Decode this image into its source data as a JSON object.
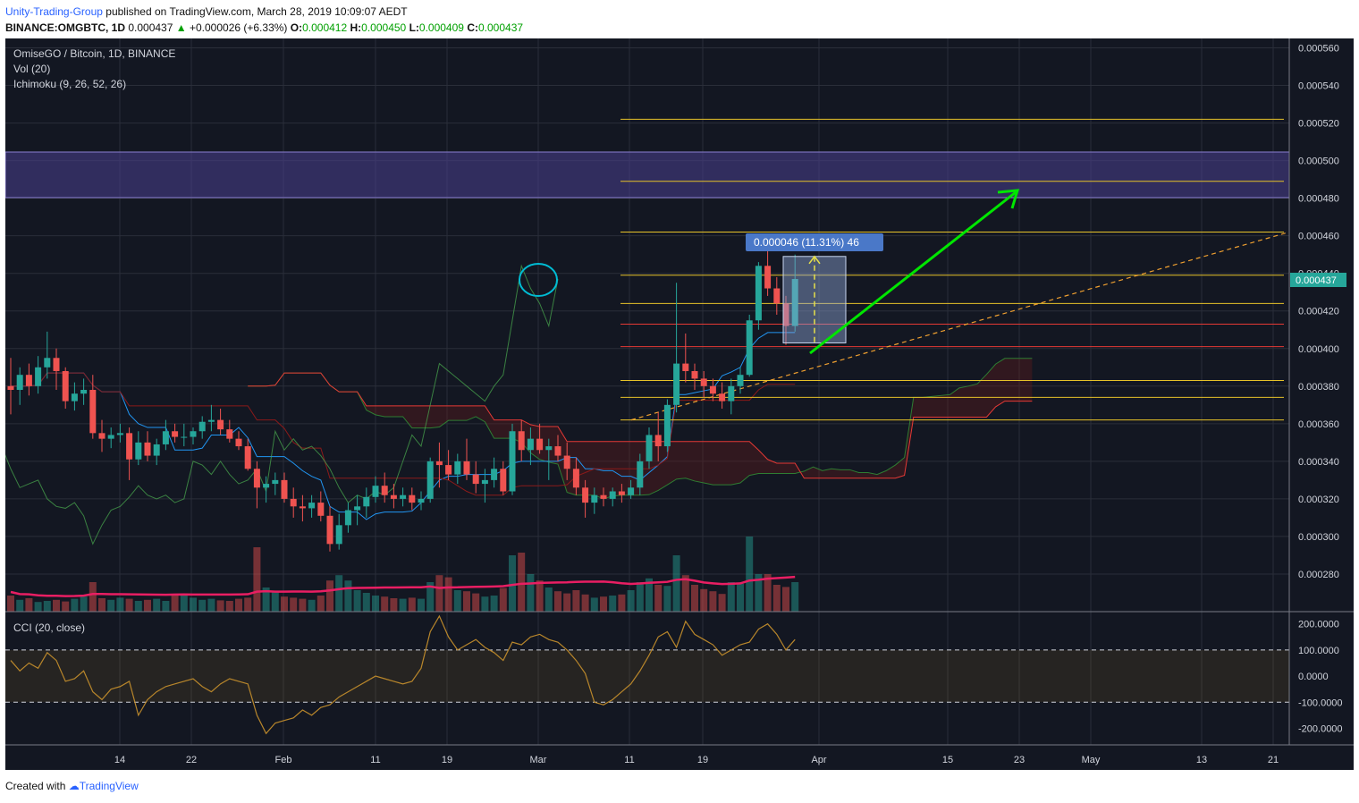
{
  "header": {
    "author": "Unity-Trading-Group",
    "published": "published on TradingView.com, March 28, 2019 10:09:07 AEDT",
    "symbol": "BINANCE:OMGBTC, 1D",
    "last": "0.000437",
    "change": "+0.000026 (+6.33%)",
    "o_label": "O:",
    "o": "0.000412",
    "h_label": "H:",
    "h": "0.000450",
    "l_label": "L:",
    "l": "0.000409",
    "c_label": "C:",
    "c": "0.000437"
  },
  "legend": {
    "line1": "OmiseGO / Bitcoin, 1D, BINANCE",
    "line2": "Vol (20)",
    "line3": "Ichimoku (9, 26, 52, 26)",
    "cci": "CCI (20, close)"
  },
  "footer": {
    "created": "Created with",
    "brand": "TradingView"
  },
  "colors": {
    "bg": "#131722",
    "up": "#26a69a",
    "down": "#ef5350",
    "zone": "#4b3f8f",
    "fib": "#e6c229",
    "red": "#e53935",
    "arrow": "#00e600",
    "cloud_red": "#6b1a1a",
    "cloud_green": "#1b5e20",
    "price_tag": "#26a69a",
    "cci": "#b8862b",
    "vol_ma": "#e91e63"
  },
  "chart_data": [
    {
      "type": "candlestick",
      "title": "OmiseGO / Bitcoin, 1D, BINANCE",
      "ylim": [
        0.00026,
        0.000565
      ],
      "y_ticks": [
        "0.000560",
        "0.000540",
        "0.000520",
        "0.000500",
        "0.000480",
        "0.000460",
        "0.000440",
        "0.000420",
        "0.000400",
        "0.000380",
        "0.000360",
        "0.000340",
        "0.000320",
        "0.000300",
        "0.000280"
      ],
      "x_ticks": [
        "14",
        "22",
        "Feb",
        "11",
        "19",
        "Mar",
        "11",
        "19",
        "Apr",
        "15",
        "23",
        "May",
        "13",
        "21"
      ],
      "candles": [
        [
          0.00038,
          0.000395,
          0.000365,
          0.000378
        ],
        [
          0.000378,
          0.00039,
          0.00037,
          0.000386
        ],
        [
          0.000386,
          0.000392,
          0.000375,
          0.00038
        ],
        [
          0.00038,
          0.000396,
          0.000376,
          0.00039
        ],
        [
          0.00039,
          0.000409,
          0.000384,
          0.000395
        ],
        [
          0.000395,
          0.0004,
          0.000378,
          0.000388
        ],
        [
          0.000388,
          0.00039,
          0.000368,
          0.000372
        ],
        [
          0.000372,
          0.000382,
          0.000367,
          0.000376
        ],
        [
          0.000376,
          0.000384,
          0.00037,
          0.000378
        ],
        [
          0.000378,
          0.000386,
          0.000352,
          0.000355
        ],
        [
          0.000355,
          0.000362,
          0.000345,
          0.000352
        ],
        [
          0.000352,
          0.000358,
          0.000347,
          0.000354
        ],
        [
          0.000354,
          0.00036,
          0.00035,
          0.000355
        ],
        [
          0.000355,
          0.000358,
          0.00033,
          0.000341
        ],
        [
          0.000341,
          0.000356,
          0.000338,
          0.00035
        ],
        [
          0.00035,
          0.000356,
          0.00034,
          0.000343
        ],
        [
          0.000343,
          0.000352,
          0.000338,
          0.000349
        ],
        [
          0.000349,
          0.000362,
          0.000346,
          0.000356
        ],
        [
          0.000356,
          0.00036,
          0.00035,
          0.000353
        ],
        [
          0.000353,
          0.00036,
          0.000348,
          0.000353
        ],
        [
          0.000353,
          0.000358,
          0.000349,
          0.000356
        ],
        [
          0.000356,
          0.000364,
          0.000352,
          0.000361
        ],
        [
          0.000361,
          0.00037,
          0.000356,
          0.000362
        ],
        [
          0.000362,
          0.000368,
          0.000354,
          0.000357
        ],
        [
          0.000357,
          0.000362,
          0.00035,
          0.000352
        ],
        [
          0.000352,
          0.000356,
          0.000346,
          0.000348
        ],
        [
          0.000348,
          0.000352,
          0.000335,
          0.000336
        ],
        [
          0.000336,
          0.00034,
          0.000315,
          0.000326
        ],
        [
          0.000326,
          0.000332,
          0.000318,
          0.000328
        ],
        [
          0.000328,
          0.000334,
          0.000322,
          0.00033
        ],
        [
          0.00033,
          0.000334,
          0.000318,
          0.00032
        ],
        [
          0.00032,
          0.000326,
          0.00031,
          0.000316
        ],
        [
          0.000316,
          0.000322,
          0.000308,
          0.000315
        ],
        [
          0.000315,
          0.000322,
          0.00031,
          0.000318
        ],
        [
          0.000318,
          0.000324,
          0.000308,
          0.000311
        ],
        [
          0.000311,
          0.000316,
          0.000292,
          0.000296
        ],
        [
          0.000296,
          0.000312,
          0.000293,
          0.000306
        ],
        [
          0.000306,
          0.000318,
          0.000302,
          0.000314
        ],
        [
          0.000314,
          0.000322,
          0.000306,
          0.000316
        ],
        [
          0.000316,
          0.000326,
          0.00031,
          0.000321
        ],
        [
          0.000321,
          0.000332,
          0.000318,
          0.000327
        ],
        [
          0.000327,
          0.000334,
          0.000318,
          0.000322
        ],
        [
          0.000322,
          0.000328,
          0.000315,
          0.00032
        ],
        [
          0.00032,
          0.000326,
          0.000316,
          0.000322
        ],
        [
          0.000322,
          0.000326,
          0.000314,
          0.000318
        ],
        [
          0.000318,
          0.000324,
          0.000314,
          0.00032
        ],
        [
          0.00032,
          0.000342,
          0.000318,
          0.00034
        ],
        [
          0.00034,
          0.00035,
          0.000326,
          0.000338
        ],
        [
          0.000338,
          0.000346,
          0.00033,
          0.000333
        ],
        [
          0.000333,
          0.000344,
          0.000328,
          0.00034
        ],
        [
          0.00034,
          0.000352,
          0.00033,
          0.000333
        ],
        [
          0.000333,
          0.00034,
          0.000323,
          0.000328
        ],
        [
          0.000328,
          0.000336,
          0.000318,
          0.00033
        ],
        [
          0.00033,
          0.000342,
          0.000326,
          0.000336
        ],
        [
          0.000336,
          0.00034,
          0.000322,
          0.000324
        ],
        [
          0.000324,
          0.00036,
          0.000322,
          0.000356
        ],
        [
          0.000356,
          0.000362,
          0.00034,
          0.000346
        ],
        [
          0.000346,
          0.000358,
          0.000338,
          0.000352
        ],
        [
          0.000352,
          0.00036,
          0.000344,
          0.000346
        ],
        [
          0.000346,
          0.000352,
          0.00033,
          0.000348
        ],
        [
          0.000348,
          0.000354,
          0.00034,
          0.000343
        ],
        [
          0.000343,
          0.00035,
          0.00033,
          0.000336
        ],
        [
          0.000336,
          0.000342,
          0.000322,
          0.000326
        ],
        [
          0.000326,
          0.00033,
          0.00031,
          0.000318
        ],
        [
          0.000318,
          0.000326,
          0.000312,
          0.000322
        ],
        [
          0.000322,
          0.000326,
          0.000316,
          0.00032
        ],
        [
          0.00032,
          0.000326,
          0.000316,
          0.000324
        ],
        [
          0.000324,
          0.000328,
          0.000318,
          0.000322
        ],
        [
          0.000322,
          0.00033,
          0.00032,
          0.000326
        ],
        [
          0.000326,
          0.000344,
          0.000322,
          0.00034
        ],
        [
          0.00034,
          0.000358,
          0.000336,
          0.000354
        ],
        [
          0.000354,
          0.000366,
          0.00034,
          0.000348
        ],
        [
          0.000348,
          0.000373,
          0.000345,
          0.00037
        ],
        [
          0.00037,
          0.000435,
          0.000366,
          0.000392
        ],
        [
          0.000392,
          0.000408,
          0.000382,
          0.000388
        ],
        [
          0.000388,
          0.000392,
          0.000378,
          0.000384
        ],
        [
          0.000384,
          0.000388,
          0.000374,
          0.00038
        ],
        [
          0.00038,
          0.000384,
          0.000372,
          0.000376
        ],
        [
          0.000376,
          0.000382,
          0.000368,
          0.000372
        ],
        [
          0.000372,
          0.000384,
          0.000365,
          0.00038
        ],
        [
          0.00038,
          0.00039,
          0.000376,
          0.000386
        ],
        [
          0.000386,
          0.000418,
          0.000385,
          0.000415
        ],
        [
          0.000415,
          0.000446,
          0.00041,
          0.000444
        ],
        [
          0.000444,
          0.000452,
          0.000428,
          0.000432
        ],
        [
          0.000432,
          0.000438,
          0.000418,
          0.000424
        ],
        [
          0.000424,
          0.000428,
          0.000402,
          0.000412
        ],
        [
          0.000412,
          0.00045,
          0.000409,
          0.000437
        ]
      ],
      "volume": [
        0.3,
        0.22,
        0.25,
        0.18,
        0.2,
        0.22,
        0.19,
        0.24,
        0.28,
        0.55,
        0.25,
        0.22,
        0.26,
        0.24,
        0.2,
        0.22,
        0.24,
        0.2,
        0.32,
        0.3,
        0.26,
        0.22,
        0.24,
        0.21,
        0.2,
        0.24,
        0.26,
        1.2,
        0.45,
        0.38,
        0.28,
        0.26,
        0.24,
        0.22,
        0.3,
        0.58,
        0.68,
        0.58,
        0.4,
        0.35,
        0.3,
        0.28,
        0.25,
        0.24,
        0.26,
        0.24,
        0.55,
        0.68,
        0.64,
        0.4,
        0.38,
        0.34,
        0.28,
        0.3,
        0.44,
        1.05,
        1.1,
        0.7,
        0.58,
        0.45,
        0.38,
        0.34,
        0.4,
        0.32,
        0.26,
        0.28,
        0.3,
        0.32,
        0.4,
        0.55,
        0.62,
        0.5,
        0.48,
        1.05,
        0.68,
        0.5,
        0.42,
        0.38,
        0.33,
        0.55,
        0.52,
        1.4,
        0.7,
        0.7,
        0.5,
        0.46,
        0.55
      ],
      "annotations": [
        {
          "text": "0.000046 (11.31%) 46"
        },
        {
          "text": "0.000437"
        }
      ]
    },
    {
      "type": "line",
      "title": "CCI (20, close)",
      "ylim": [
        -260,
        240
      ],
      "y_ticks": [
        "200.0000",
        "100.0000",
        "0.0000",
        "-100.0000",
        "-200.0000"
      ],
      "values": [
        60,
        20,
        50,
        30,
        90,
        60,
        -20,
        -10,
        20,
        -60,
        -90,
        -50,
        -40,
        -20,
        -150,
        -90,
        -60,
        -40,
        -30,
        -20,
        -10,
        -40,
        -60,
        -30,
        -10,
        -20,
        -30,
        -150,
        -220,
        -180,
        -170,
        -160,
        -130,
        -150,
        -120,
        -110,
        -80,
        -60,
        -40,
        -20,
        0,
        -10,
        -20,
        -30,
        -20,
        30,
        170,
        230,
        150,
        100,
        120,
        140,
        110,
        90,
        60,
        130,
        120,
        150,
        160,
        140,
        130,
        100,
        60,
        10,
        -100,
        -110,
        -90,
        -60,
        -30,
        20,
        80,
        150,
        170,
        110,
        210,
        160,
        140,
        120,
        80,
        100,
        120,
        130,
        180,
        200,
        160,
        100,
        140
      ]
    }
  ]
}
